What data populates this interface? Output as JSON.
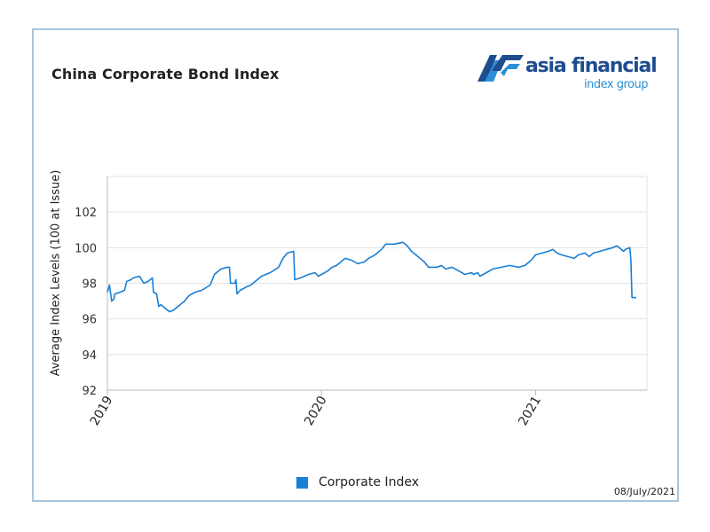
{
  "header": {
    "title": "China Corporate Bond Index"
  },
  "logo": {
    "name": "asia financial",
    "sub": "index group",
    "colors": {
      "dark": "#1e4c8f",
      "light": "#2c8fd6"
    }
  },
  "footer": {
    "date": "08/July/2021"
  },
  "chart_data": {
    "type": "line",
    "title": "China Corporate Bond Index",
    "ylabel": "Average Index Levels (100 at Issue)",
    "xlabel": "",
    "ylim": [
      92,
      104
    ],
    "yticks": [
      92,
      94,
      96,
      98,
      100,
      102
    ],
    "xticks": [
      {
        "label": "2019",
        "x": 2019.0
      },
      {
        "label": "2020",
        "x": 2020.0
      },
      {
        "label": "2021",
        "x": 2021.0
      }
    ],
    "xlim": [
      2019.0,
      2021.52
    ],
    "grid": true,
    "legend_position": "bottom-center",
    "series": [
      {
        "name": "Corporate Index",
        "color": "#1a7fd4",
        "points": [
          [
            2019.0,
            97.5
          ],
          [
            2019.01,
            97.9
          ],
          [
            2019.02,
            97.0
          ],
          [
            2019.03,
            97.1
          ],
          [
            2019.035,
            97.4
          ],
          [
            2019.06,
            97.5
          ],
          [
            2019.08,
            97.6
          ],
          [
            2019.09,
            98.1
          ],
          [
            2019.11,
            98.2
          ],
          [
            2019.12,
            98.3
          ],
          [
            2019.15,
            98.4
          ],
          [
            2019.16,
            98.2
          ],
          [
            2019.17,
            98.0
          ],
          [
            2019.19,
            98.1
          ],
          [
            2019.21,
            98.3
          ],
          [
            2019.215,
            97.5
          ],
          [
            2019.23,
            97.4
          ],
          [
            2019.24,
            96.7
          ],
          [
            2019.25,
            96.8
          ],
          [
            2019.27,
            96.6
          ],
          [
            2019.29,
            96.4
          ],
          [
            2019.31,
            96.5
          ],
          [
            2019.32,
            96.6
          ],
          [
            2019.33,
            96.7
          ],
          [
            2019.36,
            97.0
          ],
          [
            2019.38,
            97.3
          ],
          [
            2019.41,
            97.5
          ],
          [
            2019.44,
            97.6
          ],
          [
            2019.48,
            97.9
          ],
          [
            2019.5,
            98.5
          ],
          [
            2019.53,
            98.8
          ],
          [
            2019.56,
            98.9
          ],
          [
            2019.57,
            98.9
          ],
          [
            2019.575,
            98.0
          ],
          [
            2019.595,
            98.0
          ],
          [
            2019.6,
            98.2
          ],
          [
            2019.605,
            97.4
          ],
          [
            2019.62,
            97.6
          ],
          [
            2019.65,
            97.8
          ],
          [
            2019.67,
            97.9
          ],
          [
            2019.7,
            98.2
          ],
          [
            2019.72,
            98.4
          ],
          [
            2019.76,
            98.6
          ],
          [
            2019.8,
            98.9
          ],
          [
            2019.82,
            99.4
          ],
          [
            2019.84,
            99.7
          ],
          [
            2019.87,
            99.8
          ],
          [
            2019.875,
            98.2
          ],
          [
            2019.9,
            98.3
          ],
          [
            2019.94,
            98.5
          ],
          [
            2019.97,
            98.6
          ],
          [
            2019.985,
            98.4
          ],
          [
            2020.0,
            98.5
          ],
          [
            2020.03,
            98.7
          ],
          [
            2020.05,
            98.9
          ],
          [
            2020.07,
            99.0
          ],
          [
            2020.09,
            99.2
          ],
          [
            2020.11,
            99.4
          ],
          [
            2020.14,
            99.3
          ],
          [
            2020.17,
            99.1
          ],
          [
            2020.2,
            99.2
          ],
          [
            2020.22,
            99.4
          ],
          [
            2020.25,
            99.6
          ],
          [
            2020.28,
            99.9
          ],
          [
            2020.3,
            100.2
          ],
          [
            2020.34,
            100.2
          ],
          [
            2020.38,
            100.3
          ],
          [
            2020.4,
            100.1
          ],
          [
            2020.42,
            99.8
          ],
          [
            2020.46,
            99.4
          ],
          [
            2020.48,
            99.2
          ],
          [
            2020.5,
            98.9
          ],
          [
            2020.54,
            98.9
          ],
          [
            2020.56,
            99.0
          ],
          [
            2020.58,
            98.8
          ],
          [
            2020.61,
            98.9
          ],
          [
            2020.64,
            98.7
          ],
          [
            2020.67,
            98.5
          ],
          [
            2020.7,
            98.6
          ],
          [
            2020.71,
            98.5
          ],
          [
            2020.73,
            98.6
          ],
          [
            2020.74,
            98.4
          ],
          [
            2020.77,
            98.6
          ],
          [
            2020.8,
            98.8
          ],
          [
            2020.84,
            98.9
          ],
          [
            2020.88,
            99.0
          ],
          [
            2020.92,
            98.9
          ],
          [
            2020.95,
            99.0
          ],
          [
            2020.98,
            99.3
          ],
          [
            2021.0,
            99.6
          ],
          [
            2021.03,
            99.7
          ],
          [
            2021.06,
            99.8
          ],
          [
            2021.08,
            99.9
          ],
          [
            2021.1,
            99.7
          ],
          [
            2021.12,
            99.6
          ],
          [
            2021.15,
            99.5
          ],
          [
            2021.18,
            99.4
          ],
          [
            2021.2,
            99.6
          ],
          [
            2021.23,
            99.7
          ],
          [
            2021.25,
            99.5
          ],
          [
            2021.27,
            99.7
          ],
          [
            2021.3,
            99.8
          ],
          [
            2021.33,
            99.9
          ],
          [
            2021.36,
            100.0
          ],
          [
            2021.38,
            100.1
          ],
          [
            2021.4,
            99.9
          ],
          [
            2021.41,
            99.8
          ],
          [
            2021.42,
            99.9
          ],
          [
            2021.44,
            100.0
          ],
          [
            2021.445,
            99.3
          ],
          [
            2021.45,
            97.2
          ],
          [
            2021.47,
            97.2
          ]
        ]
      }
    ]
  }
}
